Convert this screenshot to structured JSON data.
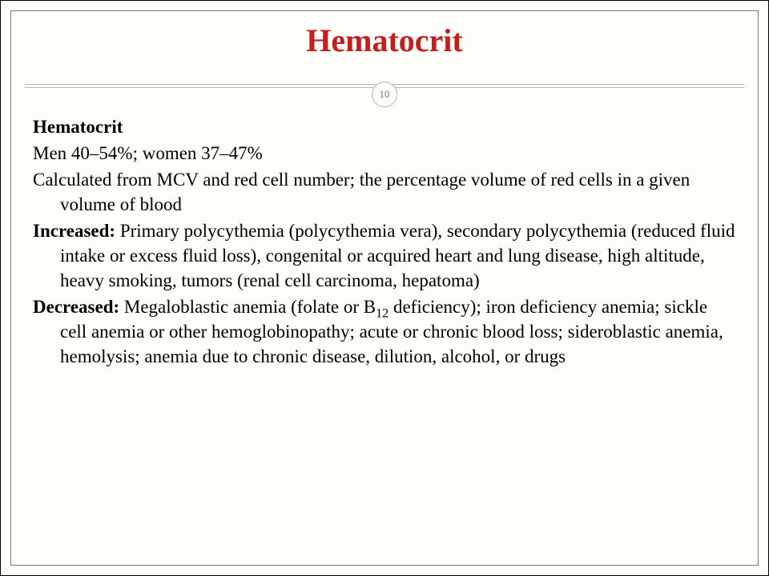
{
  "title": "Hematocrit",
  "pageNumber": "10",
  "heading": "Hematocrit",
  "range": "Men 40–54%; women 37–47%",
  "definition": "Calculated from MCV and red cell number; the percentage volume of red cells in a given volume of blood",
  "increasedLabel": "Increased: ",
  "increasedText": "Primary polycythemia (polycythemia vera), secondary polycythemia (reduced fluid intake or excess fluid loss), congenital or acquired heart and lung disease, high altitude, heavy smoking, tumors (renal cell carcinoma, hepatoma)",
  "decreasedLabel": "Decreased: ",
  "decreasedPre": "Megaloblastic anemia (folate or B",
  "decreasedSub": "12",
  "decreasedPost": " deficiency); iron deficiency anemia; sickle cell anemia or other hemoglobinopathy; acute or chronic blood loss; sideroblastic anemia, hemolysis; anemia due to chronic disease, dilution, alcohol, or drugs",
  "colors": {
    "title": "#c2201f",
    "background": "#fdfdf9",
    "rule": "#b9b9a8",
    "text": "#000000",
    "badgeText": "#7a7a6a"
  },
  "typography": {
    "titleSize": 40,
    "bodySize": 23,
    "family": "Georgia, serif"
  }
}
